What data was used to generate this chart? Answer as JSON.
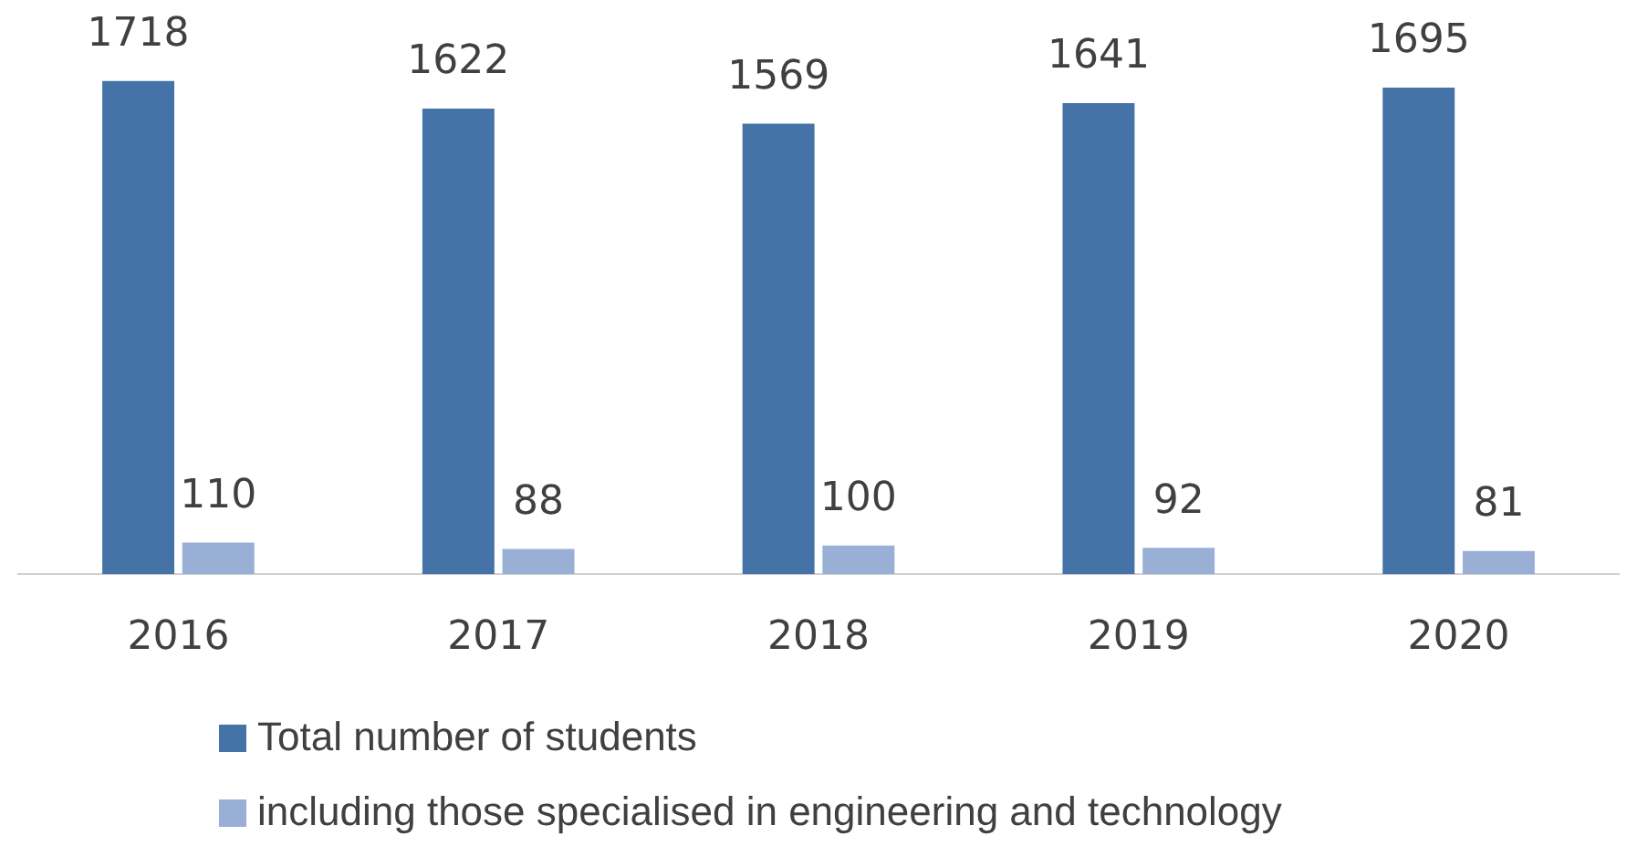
{
  "chart_data": {
    "type": "bar",
    "categories": [
      "2016",
      "2017",
      "2018",
      "2019",
      "2020"
    ],
    "series": [
      {
        "name": "Total number of students",
        "color": "#4573a7",
        "values": [
          1718,
          1622,
          1569,
          1641,
          1695
        ]
      },
      {
        "name": "including those specialised in engineering and technology",
        "color": "#9aafd6",
        "values": [
          110,
          88,
          100,
          92,
          81
        ]
      }
    ],
    "data_labels": true,
    "legend": "bottom",
    "grid": false
  }
}
